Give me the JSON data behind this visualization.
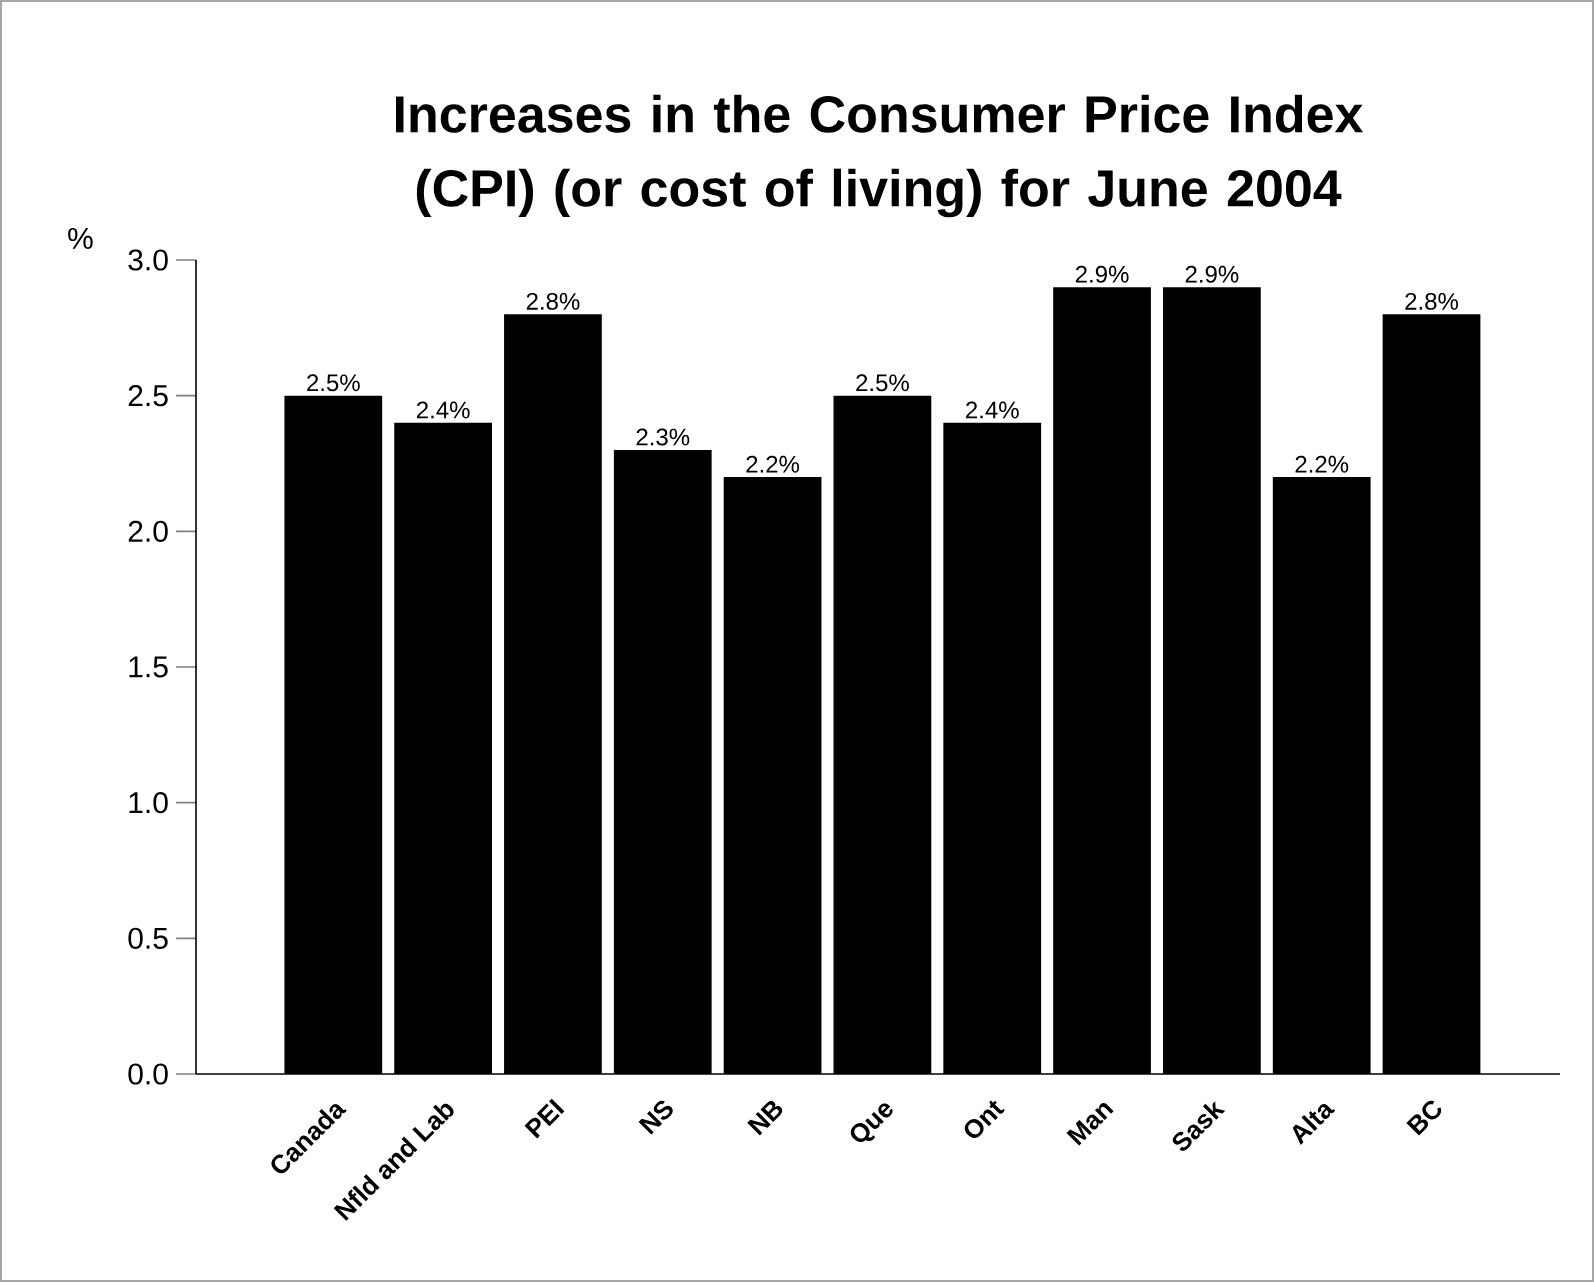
{
  "chart_data": {
    "type": "bar",
    "title": "Increases in the Consumer Price Index (CPI) (or cost of living) for June 2004",
    "ylabel": "%",
    "categories": [
      "Canada",
      "Nfld and Lab",
      "PEI",
      "NS",
      "NB",
      "Que",
      "Ont",
      "Man",
      "Sask",
      "Alta",
      "BC"
    ],
    "values": [
      2.5,
      2.4,
      2.8,
      2.3,
      2.2,
      2.5,
      2.4,
      2.9,
      2.9,
      2.2,
      2.8
    ],
    "value_labels": [
      "2.5%",
      "2.4%",
      "2.8%",
      "2.3%",
      "2.2%",
      "2.5%",
      "2.4%",
      "2.9%",
      "2.9%",
      "2.2%",
      "2.8%"
    ],
    "color": "#000000",
    "ylim": [
      0,
      3.0
    ],
    "yticks": [
      {
        "value": 0,
        "label": "0.0"
      },
      {
        "value": 0.5,
        "label": "0.5"
      },
      {
        "value": 1.0,
        "label": "1.0"
      },
      {
        "value": 1.5,
        "label": "1.5"
      },
      {
        "value": 2.0,
        "label": "2.0"
      },
      {
        "value": 2.5,
        "label": "2.5"
      },
      {
        "value": 3.0,
        "label": "3.0"
      }
    ],
    "marker": "none"
  }
}
